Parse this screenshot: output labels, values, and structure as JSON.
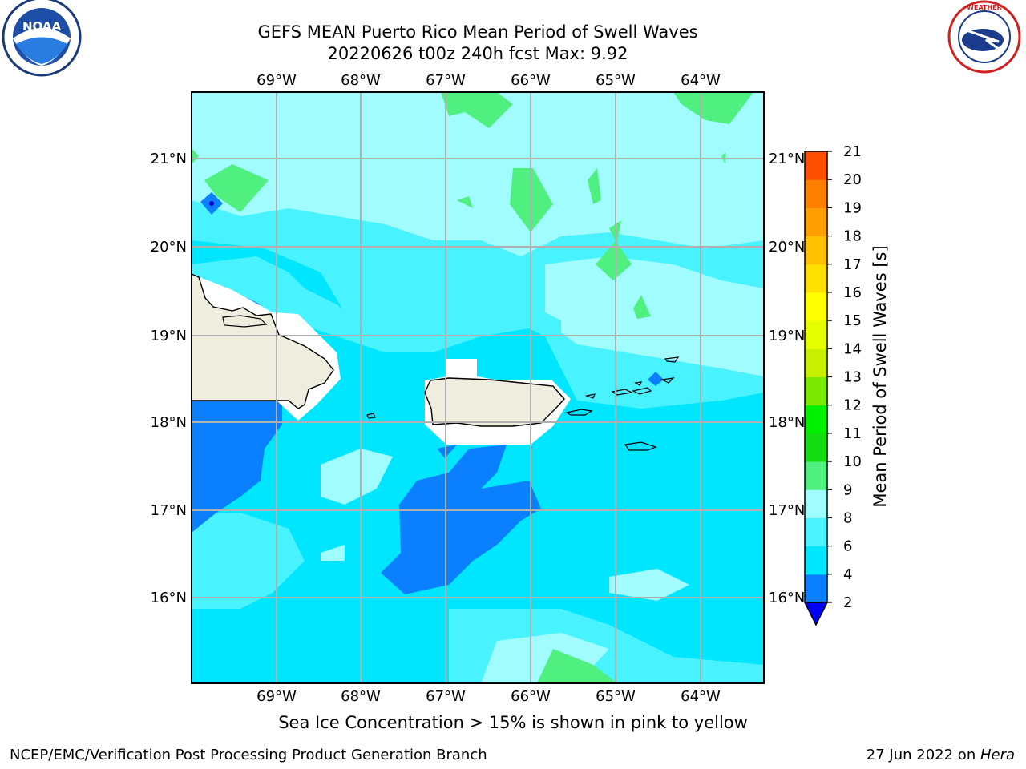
{
  "header": {
    "title_line1": "GEFS MEAN Puerto Rico Mean Period of Swell Waves",
    "title_line2": "20220626 t00z 240h fcst   Max: 9.92"
  },
  "logos": {
    "left": "noaa-logo",
    "left_text": "NOAA",
    "left_ring_text": "NATIONAL OCEANIC AND ATMOSPHERIC ADMINISTRATION · U.S. DEPARTMENT OF COMMERCE",
    "right": "nws-logo",
    "right_ring_text": "NATIONAL WEATHER SERVICE"
  },
  "map": {
    "lon_labels": [
      "69°W",
      "68°W",
      "67°W",
      "66°W",
      "65°W",
      "64°W"
    ],
    "lat_labels": [
      "21°N",
      "20°N",
      "19°N",
      "18°N",
      "17°N",
      "16°N"
    ],
    "colors": {
      "land": "#efedde",
      "ice_free_coast": "#ffffff",
      "grid": "#b0b0b0"
    }
  },
  "colorbar": {
    "label": "Mean Period of Swell Waves [s]",
    "ticks": [
      "2",
      "4",
      "6",
      "8",
      "9",
      "10",
      "11",
      "12",
      "13",
      "14",
      "15",
      "16",
      "17",
      "18",
      "19",
      "20",
      "21"
    ],
    "colors": [
      "#0a80ff",
      "#00e6ff",
      "#48f2ff",
      "#a0fcff",
      "#50f080",
      "#14dd14",
      "#00f000",
      "#7be800",
      "#c8f000",
      "#e6ff00",
      "#ffff00",
      "#ffe000",
      "#ffc000",
      "#ffa000",
      "#ff8000",
      "#ff5000",
      "#ff1800"
    ],
    "under_color": "#0000ff"
  },
  "footer": {
    "note": "Sea Ice Concentration > 15% is shown in pink to yellow",
    "left": "NCEP/EMC/Verification Post Processing Product Generation Branch",
    "right_date": "27 Jun 2022 on ",
    "right_host": "Hera"
  }
}
